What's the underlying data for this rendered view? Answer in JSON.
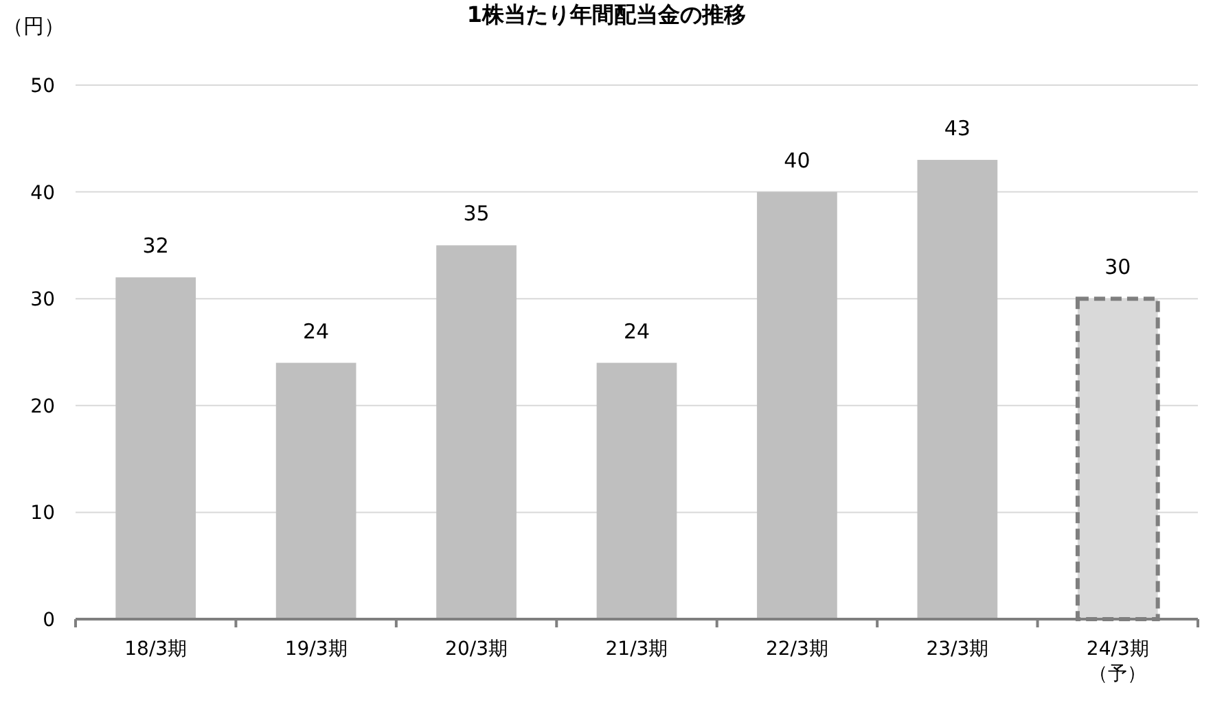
{
  "chart_data": {
    "type": "bar",
    "title": "1株当たり年間配当金の推移",
    "ylabel": "（円）",
    "categories": [
      "18/3期",
      "19/3期",
      "20/3期",
      "21/3期",
      "22/3期",
      "23/3期",
      "24/3期（予）"
    ],
    "series": [
      {
        "color": "#bfbfbf",
        "values": [
          32,
          24,
          35,
          24,
          40,
          43,
          null
        ]
      },
      {
        "color": "#d9d9d9",
        "line_style": "dashed",
        "values": [
          null,
          null,
          null,
          null,
          null,
          null,
          30
        ]
      }
    ],
    "ylim": [
      0,
      50
    ],
    "yticks": [
      0,
      10,
      20,
      30,
      40,
      50
    ],
    "grid": "y",
    "data_labels": true
  }
}
